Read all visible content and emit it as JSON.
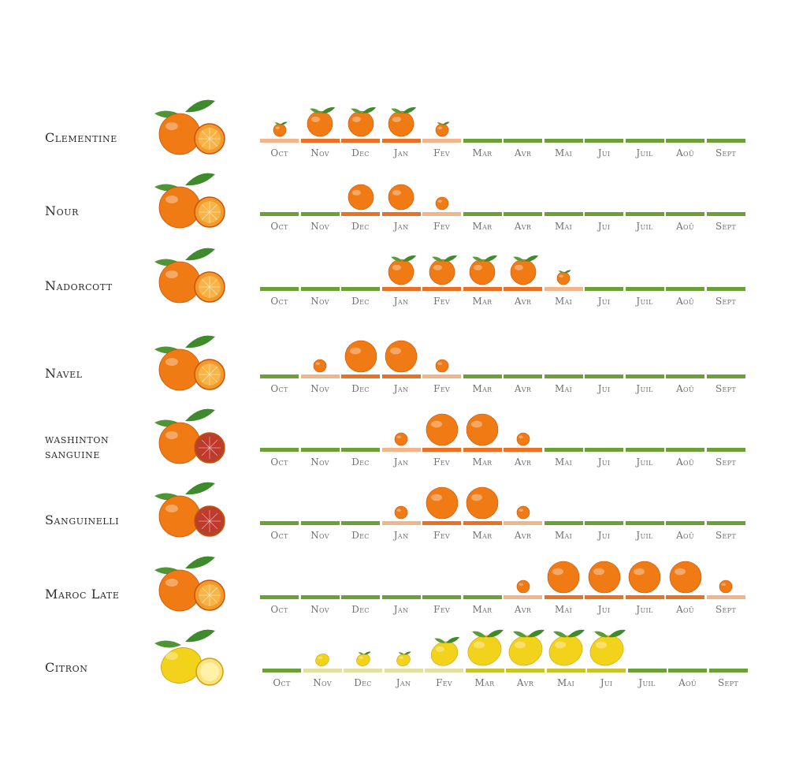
{
  "colors": {
    "off_season": "#6aa035",
    "peak": "#ec7024",
    "partial": "#f2b48a",
    "lemon_peak": "#c7c42d",
    "lemon_partial": "#e2dfa3",
    "orange_fruit": "#f07a14",
    "lemon_fruit": "#f3d21c",
    "leaf": "#3f8a2c"
  },
  "chart_data": {
    "type": "table",
    "title": "",
    "months": [
      "Oct",
      "Nov",
      "Dec",
      "Jan",
      "Fev",
      "Mar",
      "Avr",
      "Mai",
      "Jui",
      "Juil",
      "Aoû",
      "Sept"
    ],
    "availability_levels": [
      "off",
      "partial",
      "peak"
    ],
    "fruit_size_scale": "0 = none, 1 = small, 2 = medium, 3 = large",
    "rows": [
      {
        "name": [
          "Clementine"
        ],
        "fruit": "clementine-icon",
        "kind": "orange",
        "status": [
          "partial",
          "peak",
          "peak",
          "peak",
          "partial",
          "off",
          "off",
          "off",
          "off",
          "off",
          "off",
          "off"
        ],
        "fruit_size": [
          1,
          2,
          2,
          2,
          1,
          0,
          0,
          0,
          0,
          0,
          0,
          0
        ],
        "leaf": [
          1,
          1,
          1,
          1,
          1,
          0,
          0,
          0,
          0,
          0,
          0,
          0
        ]
      },
      {
        "name": [
          "Nour"
        ],
        "fruit": "nour-mandarin-icon",
        "kind": "orange",
        "status": [
          "off",
          "off",
          "peak",
          "peak",
          "partial",
          "off",
          "off",
          "off",
          "off",
          "off",
          "off",
          "off"
        ],
        "fruit_size": [
          0,
          0,
          2,
          2,
          1,
          0,
          0,
          0,
          0,
          0,
          0,
          0
        ],
        "leaf": [
          0,
          0,
          0,
          0,
          0,
          0,
          0,
          0,
          0,
          0,
          0,
          0
        ]
      },
      {
        "name": [
          "Nadorcott"
        ],
        "fruit": "nadorcott-mandarin-icon",
        "kind": "orange",
        "status": [
          "off",
          "off",
          "off",
          "peak",
          "peak",
          "peak",
          "peak",
          "partial",
          "off",
          "off",
          "off",
          "off"
        ],
        "fruit_size": [
          0,
          0,
          0,
          2,
          2,
          2,
          2,
          1,
          0,
          0,
          0,
          0
        ],
        "leaf": [
          0,
          0,
          0,
          1,
          1,
          1,
          1,
          1,
          0,
          0,
          0,
          0
        ]
      },
      {
        "name": [
          "Navel"
        ],
        "fruit": "navel-orange-icon",
        "kind": "orange",
        "status": [
          "off",
          "partial",
          "peak",
          "peak",
          "partial",
          "off",
          "off",
          "off",
          "off",
          "off",
          "off",
          "off"
        ],
        "fruit_size": [
          0,
          1,
          3,
          3,
          1,
          0,
          0,
          0,
          0,
          0,
          0,
          0
        ],
        "leaf": [
          0,
          0,
          0,
          0,
          0,
          0,
          0,
          0,
          0,
          0,
          0,
          0
        ]
      },
      {
        "name": [
          "washinton",
          "sanguine"
        ],
        "fruit": "blood-orange-icon",
        "kind": "orange",
        "status": [
          "off",
          "off",
          "off",
          "partial",
          "peak",
          "peak",
          "peak",
          "off",
          "off",
          "off",
          "off",
          "off"
        ],
        "fruit_size": [
          0,
          0,
          0,
          1,
          3,
          3,
          1,
          0,
          0,
          0,
          0,
          0
        ],
        "leaf": [
          0,
          0,
          0,
          0,
          0,
          0,
          0,
          0,
          0,
          0,
          0,
          0
        ]
      },
      {
        "name": [
          "Sanguinelli"
        ],
        "fruit": "sanguinelli-orange-icon",
        "kind": "orange",
        "status": [
          "off",
          "off",
          "off",
          "partial",
          "peak",
          "peak",
          "partial",
          "off",
          "off",
          "off",
          "off",
          "off"
        ],
        "fruit_size": [
          0,
          0,
          0,
          1,
          3,
          3,
          1,
          0,
          0,
          0,
          0,
          0
        ],
        "leaf": [
          0,
          0,
          0,
          0,
          0,
          0,
          0,
          0,
          0,
          0,
          0,
          0
        ]
      },
      {
        "name": [
          "Maroc Late"
        ],
        "fruit": "maroc-late-orange-icon",
        "kind": "orange",
        "status": [
          "off",
          "off",
          "off",
          "off",
          "off",
          "off",
          "partial",
          "peak",
          "peak",
          "peak",
          "peak",
          "partial"
        ],
        "fruit_size": [
          0,
          0,
          0,
          0,
          0,
          0,
          1,
          3,
          3,
          3,
          3,
          1
        ],
        "leaf": [
          0,
          0,
          0,
          0,
          0,
          0,
          0,
          0,
          0,
          0,
          0,
          0
        ]
      },
      {
        "name": [
          "Citron"
        ],
        "fruit": "lemon-icon",
        "kind": "lemon",
        "status": [
          "off",
          "partial",
          "partial",
          "partial",
          "partial",
          "peak",
          "peak",
          "peak",
          "peak",
          "off",
          "off",
          "off"
        ],
        "fruit_size": [
          0,
          1,
          1,
          1,
          2,
          3,
          3,
          3,
          3,
          0,
          0,
          0
        ],
        "leaf": [
          0,
          0,
          1,
          1,
          1,
          1,
          1,
          1,
          1,
          0,
          0,
          0
        ]
      }
    ]
  }
}
